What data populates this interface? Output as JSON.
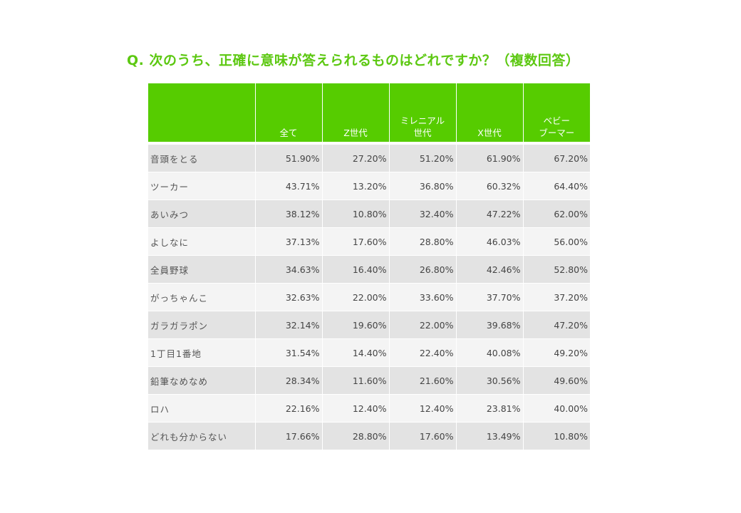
{
  "title": "Q. 次のうち、正確に意味が答えられるものはどれですか？（複数回答）",
  "table": {
    "headers": [
      "",
      "全て",
      "Z世代",
      "ミレニアル\n世代",
      "X世代",
      "ベビー\nブーマー"
    ],
    "rows": [
      {
        "label": "音頭をとる",
        "values": [
          "51.90%",
          "27.20%",
          "51.20%",
          "61.90%",
          "67.20%"
        ]
      },
      {
        "label": "ツーカー",
        "values": [
          "43.71%",
          "13.20%",
          "36.80%",
          "60.32%",
          "64.40%"
        ]
      },
      {
        "label": "あいみつ",
        "values": [
          "38.12%",
          "10.80%",
          "32.40%",
          "47.22%",
          "62.00%"
        ]
      },
      {
        "label": "よしなに",
        "values": [
          "37.13%",
          "17.60%",
          "28.80%",
          "46.03%",
          "56.00%"
        ]
      },
      {
        "label": "全員野球",
        "values": [
          "34.63%",
          "16.40%",
          "26.80%",
          "42.46%",
          "52.80%"
        ]
      },
      {
        "label": "がっちゃんこ",
        "values": [
          "32.63%",
          "22.00%",
          "33.60%",
          "37.70%",
          "37.20%"
        ]
      },
      {
        "label": "ガラガラポン",
        "values": [
          "32.14%",
          "19.60%",
          "22.00%",
          "39.68%",
          "47.20%"
        ]
      },
      {
        "label": "1丁目1番地",
        "values": [
          "31.54%",
          "14.40%",
          "22.40%",
          "40.08%",
          "49.20%"
        ]
      },
      {
        "label": "鉛筆なめなめ",
        "values": [
          "28.34%",
          "11.60%",
          "21.60%",
          "30.56%",
          "49.60%"
        ]
      },
      {
        "label": "ロハ",
        "values": [
          "22.16%",
          "12.40%",
          "12.40%",
          "23.81%",
          "40.00%"
        ]
      },
      {
        "label": "どれも分からない",
        "values": [
          "17.66%",
          "28.80%",
          "17.60%",
          "13.49%",
          "10.80%"
        ]
      }
    ]
  },
  "colors": {
    "accent": "#56cc00",
    "title": "#5cc811",
    "row_odd": "#e3e3e3",
    "row_even": "#f4f4f4"
  }
}
